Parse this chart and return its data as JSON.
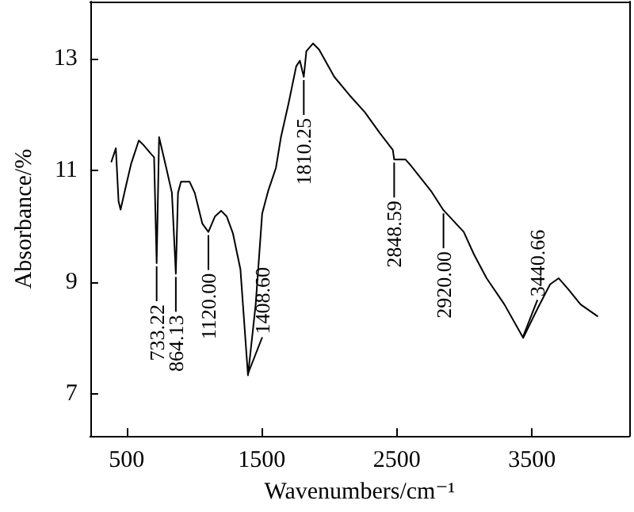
{
  "chart_data": {
    "type": "line",
    "xlabel": "Wavenumbers/cm⁻¹",
    "ylabel": "Absorbance/%",
    "xlim": [
      230,
      4220
    ],
    "ylim": [
      6.24,
      14.03
    ],
    "xticks": [
      500,
      1500,
      2500,
      3500
    ],
    "yticks": [
      7,
      9,
      11,
      13
    ],
    "marker": "none",
    "line_style": "solid",
    "series": [
      {
        "color": "#000000",
        "x": [
          387,
          420,
          440,
          455,
          500,
          534,
          590,
          624,
          680,
          703,
          722,
          740,
          793,
          835,
          864,
          880,
          902,
          966,
          1004,
          1060,
          1105,
          1154,
          1199,
          1240,
          1286,
          1342,
          1398,
          1455,
          1503,
          1548,
          1605,
          1642,
          1698,
          1755,
          1782,
          1811,
          1830,
          1879,
          1924,
          2037,
          2150,
          2262,
          2375,
          2470,
          2480,
          2563,
          2600,
          2751,
          2845,
          2995,
          3070,
          3164,
          3296,
          3435,
          3540,
          3634,
          3698,
          3766,
          3860,
          3984
        ],
        "values": [
          11.16,
          11.4,
          10.45,
          10.3,
          10.78,
          11.13,
          11.54,
          11.46,
          11.3,
          11.24,
          9.34,
          11.6,
          11.05,
          10.6,
          9.15,
          10.6,
          10.8,
          10.8,
          10.6,
          10.05,
          9.9,
          10.18,
          10.28,
          10.18,
          9.88,
          9.23,
          7.33,
          8.6,
          10.23,
          10.64,
          11.05,
          11.6,
          12.2,
          12.87,
          12.97,
          12.68,
          13.14,
          13.28,
          13.17,
          12.68,
          12.35,
          12.05,
          11.67,
          11.37,
          11.2,
          11.2,
          11.1,
          10.64,
          10.29,
          9.9,
          9.5,
          9.07,
          8.6,
          8.0,
          8.52,
          8.96,
          9.07,
          8.88,
          8.6,
          8.39
        ]
      }
    ],
    "annotations": [
      {
        "text": "733.22",
        "x": 722,
        "y": 9.34
      },
      {
        "text": "864.13",
        "x": 864,
        "y": 9.15
      },
      {
        "text": "1120.00",
        "x": 1105,
        "y": 9.9
      },
      {
        "text": "1408.60",
        "x": 1398,
        "y": 7.33
      },
      {
        "text": "1810.25",
        "x": 1811,
        "y": 12.68
      },
      {
        "text": "2848.59",
        "x": 2480,
        "y": 11.2
      },
      {
        "text": "2920.00",
        "x": 2845,
        "y": 10.29
      },
      {
        "text": "3440.66",
        "x": 3435,
        "y": 8.0
      }
    ]
  }
}
